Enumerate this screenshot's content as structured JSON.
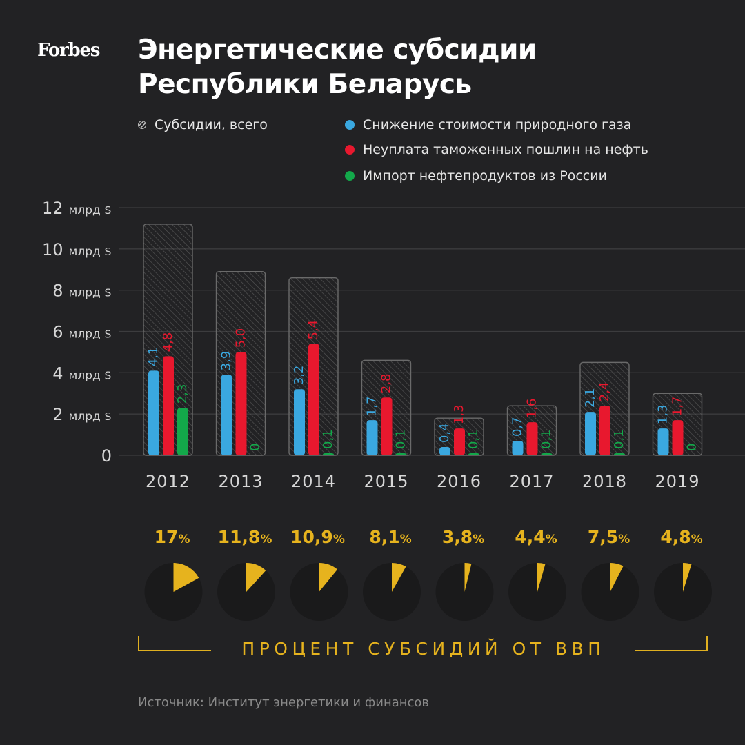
{
  "logo": "Forbes",
  "title_line1": "Энергетические субсидии",
  "title_line2": "Республики Беларусь",
  "legend": {
    "total": "Субсидии, всего",
    "gas": "Снижение стоимости природного газа",
    "duties": "Неуплата таможенных пошлин на нефть",
    "imports": "Импорт нефтепродуктов из России"
  },
  "colors": {
    "gas": "#3aa8e0",
    "duties": "#e8182e",
    "imports": "#13a84a",
    "gdp": "#e6b31e"
  },
  "gdp_caption": "ПРОЦЕНТ СУБСИДИЙ ОТ ВВП",
  "source": "Источник: Институт энергетики и финансов",
  "chart_data": {
    "type": "bar",
    "categories": [
      "2012",
      "2013",
      "2014",
      "2015",
      "2016",
      "2017",
      "2018",
      "2019"
    ],
    "y_tick_values": [
      0,
      2,
      4,
      6,
      8,
      10,
      12
    ],
    "y_tick_unit": "млрд $",
    "ylim": [
      0,
      12
    ],
    "grid": true,
    "total": [
      11.2,
      8.9,
      8.6,
      4.6,
      1.8,
      2.4,
      4.5,
      3.0
    ],
    "series": [
      {
        "key": "gas",
        "values": [
          4.1,
          3.9,
          3.2,
          1.7,
          0.4,
          0.7,
          2.1,
          1.3
        ],
        "labels": [
          "4,1",
          "3,9",
          "3,2",
          "1,7",
          "0,4",
          "0,7",
          "2,1",
          "1,3"
        ]
      },
      {
        "key": "duties",
        "values": [
          4.8,
          5.0,
          5.4,
          2.8,
          1.3,
          1.6,
          2.4,
          1.7
        ],
        "labels": [
          "4,8",
          "5,0",
          "5,4",
          "2,8",
          "1,3",
          "1,6",
          "2,4",
          "1,7"
        ]
      },
      {
        "key": "imports",
        "values": [
          2.3,
          0,
          0.1,
          0.1,
          0.1,
          0.1,
          0.1,
          0
        ],
        "labels": [
          "2,3",
          "0",
          "0,1",
          "0,1",
          "0,1",
          "0,1",
          "0,1",
          "0"
        ]
      }
    ],
    "gdp_share": {
      "values": [
        17,
        11.8,
        10.9,
        8.1,
        3.8,
        4.4,
        7.5,
        4.8
      ],
      "big": [
        "17",
        "11,8",
        "10,9",
        "8,1",
        "3,8",
        "4,4",
        "7,5",
        "4,8"
      ],
      "unit": "%"
    }
  }
}
